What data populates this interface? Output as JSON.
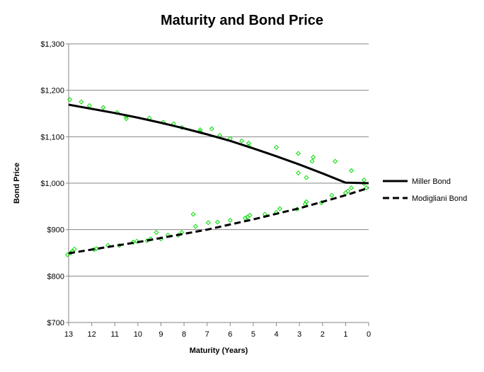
{
  "chart_data": {
    "type": "line",
    "title": "Maturity and Bond Price",
    "xlabel": "Maturity (Years)",
    "ylabel": "Bond Price",
    "xlim": [
      13,
      0
    ],
    "ylim": [
      700,
      1300
    ],
    "x_ticks": [
      13,
      12,
      11,
      10,
      9,
      8,
      7,
      6,
      5,
      4,
      3,
      2,
      1,
      0
    ],
    "x_tick_labels": [
      "13",
      "12",
      "11",
      "10",
      "9",
      "8",
      "7",
      "6",
      "5",
      "4",
      "3",
      "2",
      "1",
      "0"
    ],
    "y_ticks": [
      700,
      800,
      900,
      1000,
      1100,
      1200,
      1300
    ],
    "y_tick_labels": [
      "$700",
      "$800",
      "$900",
      "$1,000",
      "$1,100",
      "$1,200",
      "$1,300"
    ],
    "grid": "horizontal",
    "legend_position": "right",
    "series": [
      {
        "name": "Miller Bond",
        "style": "solid",
        "color": "#000000",
        "x": [
          13,
          12,
          11,
          10,
          9,
          8,
          7,
          6,
          5,
          4,
          3,
          2,
          1,
          0
        ],
        "y": [
          1169,
          1160,
          1151,
          1141,
          1130,
          1118,
          1105,
          1091,
          1075,
          1058,
          1040,
          1021,
          1001,
          1000
        ]
      },
      {
        "name": "Modigliani Bond",
        "style": "dashed",
        "color": "#000000",
        "x": [
          13,
          12,
          11,
          10,
          9,
          8,
          7,
          6,
          5,
          4,
          3,
          2,
          1,
          0
        ],
        "y": [
          849,
          857,
          865,
          873,
          882,
          891,
          900,
          911,
          922,
          934,
          946,
          960,
          974,
          990
        ]
      }
    ],
    "scatter": {
      "color": "#00dd00",
      "points": [
        [
          12.95,
          1180
        ],
        [
          12.45,
          1175
        ],
        [
          12.1,
          1167
        ],
        [
          11.5,
          1163
        ],
        [
          10.9,
          1152
        ],
        [
          10.5,
          1144
        ],
        [
          10.5,
          1139
        ],
        [
          9.5,
          1140
        ],
        [
          8.9,
          1131
        ],
        [
          8.45,
          1128
        ],
        [
          8.1,
          1120
        ],
        [
          7.3,
          1115
        ],
        [
          7.3,
          1111
        ],
        [
          6.8,
          1117
        ],
        [
          6.45,
          1103
        ],
        [
          6.0,
          1096
        ],
        [
          5.5,
          1091
        ],
        [
          5.2,
          1086
        ],
        [
          5.2,
          1080
        ],
        [
          4.0,
          1077
        ],
        [
          3.05,
          1064
        ],
        [
          2.4,
          1056
        ],
        [
          2.45,
          1047
        ],
        [
          1.45,
          1047
        ],
        [
          0.75,
          1027
        ],
        [
          2.7,
          1012
        ],
        [
          3.05,
          1022
        ],
        [
          0.2,
          1007
        ],
        [
          13.05,
          846
        ],
        [
          12.9,
          850
        ],
        [
          12.85,
          853
        ],
        [
          12.75,
          858
        ],
        [
          11.9,
          857
        ],
        [
          11.8,
          859
        ],
        [
          11.3,
          866
        ],
        [
          10.8,
          866
        ],
        [
          10.2,
          873
        ],
        [
          10.05,
          875
        ],
        [
          9.6,
          876
        ],
        [
          9.45,
          880
        ],
        [
          9.2,
          894
        ],
        [
          9.0,
          880
        ],
        [
          8.7,
          888
        ],
        [
          8.25,
          888
        ],
        [
          8.1,
          894
        ],
        [
          7.6,
          933
        ],
        [
          7.5,
          907
        ],
        [
          6.95,
          915
        ],
        [
          6.55,
          916
        ],
        [
          6.0,
          920
        ],
        [
          5.35,
          925
        ],
        [
          5.25,
          927
        ],
        [
          5.15,
          931
        ],
        [
          4.5,
          933
        ],
        [
          4.0,
          937
        ],
        [
          3.85,
          945
        ],
        [
          3.1,
          944
        ],
        [
          2.75,
          955
        ],
        [
          2.7,
          960
        ],
        [
          2.05,
          958
        ],
        [
          1.6,
          974
        ],
        [
          1.0,
          979
        ],
        [
          0.9,
          983
        ],
        [
          0.75,
          990
        ],
        [
          0.2,
          999
        ],
        [
          0.1,
          990
        ]
      ]
    }
  }
}
